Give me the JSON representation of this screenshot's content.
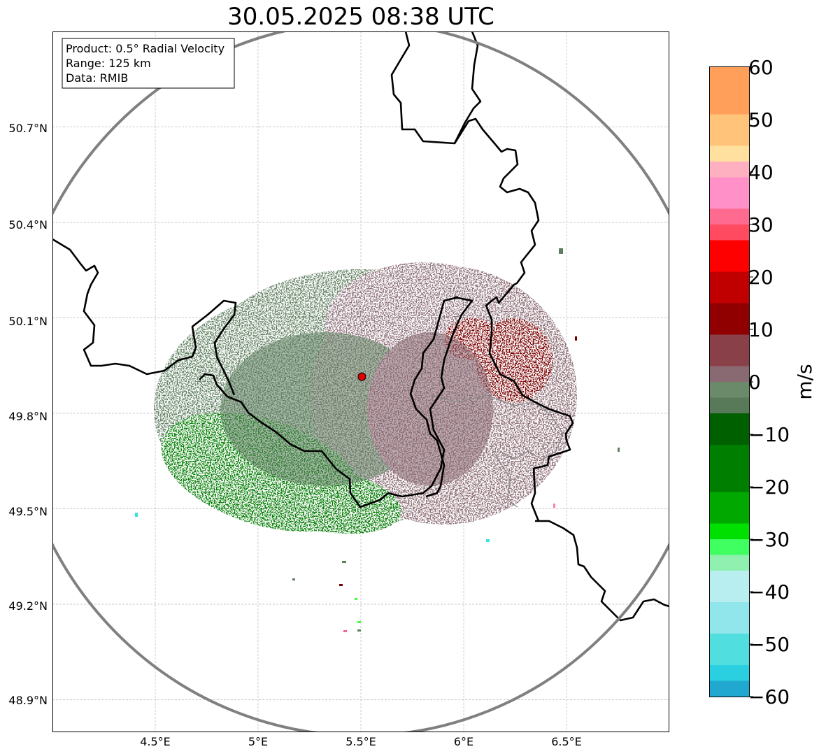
{
  "title": "30.05.2025 08:38 UTC",
  "info_box": {
    "product": "Product: 0.5° Radial Velocity",
    "range": "Range: 125 km",
    "data": "Data: RMIB"
  },
  "colorbar": {
    "label": "m/s",
    "min": -60,
    "max": 60,
    "ticks": [
      "60",
      "50",
      "40",
      "30",
      "20",
      "10",
      "0",
      "−10",
      "−20",
      "−30",
      "−40",
      "−50",
      "−60"
    ],
    "tick_values": [
      60,
      50,
      40,
      30,
      20,
      10,
      0,
      -10,
      -20,
      -30,
      -40,
      -50,
      -60
    ]
  },
  "axes": {
    "lon_ticks": [
      "4.5°E",
      "5°E",
      "5.5°E",
      "6°E",
      "6.5°E"
    ],
    "lon_values": [
      4.5,
      5.0,
      5.5,
      6.0,
      6.5
    ],
    "lat_ticks": [
      "50.7°N",
      "50.4°N",
      "50.1°N",
      "49.8°N",
      "49.5°N",
      "49.2°N",
      "48.9°N"
    ],
    "lat_values": [
      50.7,
      50.4,
      50.1,
      49.8,
      49.5,
      49.2,
      48.9
    ]
  },
  "radar_site": {
    "lon": 5.505,
    "lat": 49.915
  },
  "colors": {
    "range_ring": "#808080",
    "border": "#000000",
    "site_marker": "#e00000",
    "inbound_strong": "#007a00",
    "inbound_weak": "#5e8060",
    "outbound_weak": "#8a6a72",
    "outbound_strong": "#7a0000"
  }
}
